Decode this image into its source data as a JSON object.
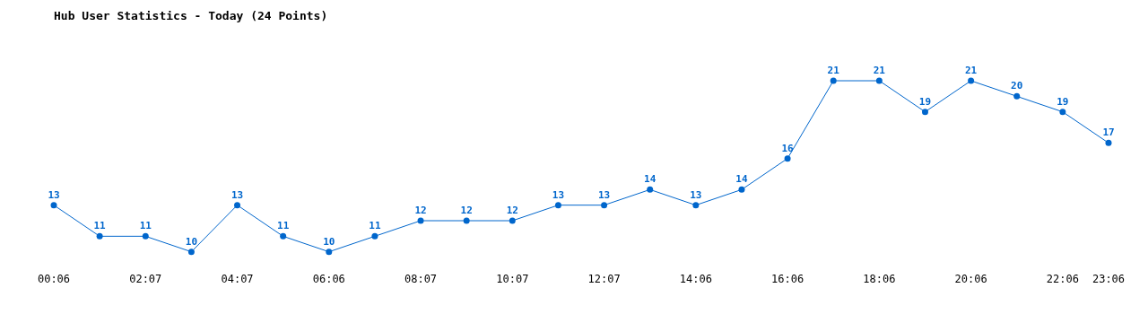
{
  "chart_data": {
    "type": "line",
    "title": "Hub User Statistics - Today (24 Points)",
    "categories": [
      "00:06",
      null,
      "02:07",
      null,
      "04:07",
      null,
      "06:06",
      null,
      "08:07",
      null,
      "10:07",
      null,
      "12:07",
      null,
      "14:06",
      null,
      "16:06",
      null,
      "18:06",
      null,
      "20:06",
      null,
      "22:06",
      "23:06"
    ],
    "series": [
      {
        "color": "#0066cc",
        "values": [
          13,
          11,
          11,
          10,
          13,
          11,
          10,
          11,
          12,
          12,
          12,
          13,
          13,
          14,
          13,
          14,
          16,
          21,
          21,
          19,
          21,
          20,
          19,
          17
        ]
      }
    ],
    "tick_labels": "x",
    "data_labels": true,
    "marker": "circle",
    "line_style": "solid",
    "grid": false,
    "legend": false
  }
}
